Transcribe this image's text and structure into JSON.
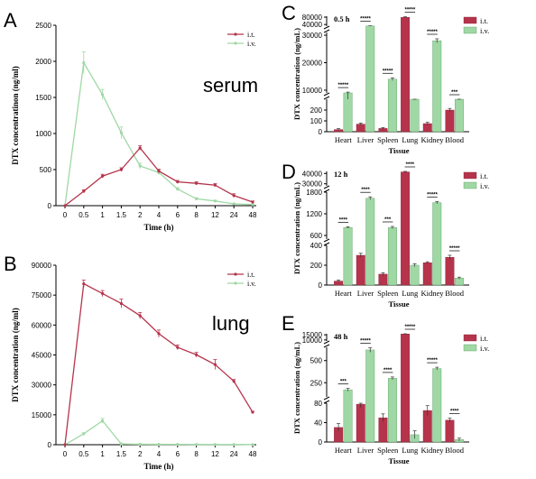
{
  "colors": {
    "it": "#b5344b",
    "iv": "#9fd8a4",
    "it_stroke": "#8a1f33",
    "iv_stroke": "#5a9b60",
    "axis": "#000000"
  },
  "chart_data": [
    {
      "panel": "A",
      "type": "line",
      "annotation": "serum",
      "xlabel": "Time (h)",
      "ylabel": "DTX concentratinon (ng/ml)",
      "categories": [
        "0",
        "0.5",
        "1",
        "1.5",
        "2",
        "4",
        "6",
        "8",
        "12",
        "24",
        "48"
      ],
      "yticks": [
        0,
        500,
        1000,
        1500,
        2000,
        2500
      ],
      "ylim": [
        0,
        2500
      ],
      "legend": "top-right",
      "series": [
        {
          "name": "i.t.",
          "values": [
            0,
            200,
            410,
            500,
            800,
            480,
            330,
            310,
            285,
            140,
            50
          ],
          "errors": [
            0,
            20,
            25,
            25,
            30,
            25,
            20,
            20,
            20,
            25,
            15
          ]
        },
        {
          "name": "i.v.",
          "values": [
            0,
            1980,
            1540,
            1010,
            550,
            460,
            230,
            95,
            65,
            25,
            15
          ],
          "errors": [
            0,
            150,
            70,
            80,
            40,
            30,
            20,
            15,
            10,
            8,
            5
          ]
        }
      ]
    },
    {
      "panel": "B",
      "type": "line",
      "annotation": "lung",
      "xlabel": "Time (h)",
      "ylabel": "DTX concentration (ng/ml)",
      "categories": [
        "0",
        "0.5",
        "1",
        "1.5",
        "2",
        "4",
        "6",
        "8",
        "12",
        "24",
        "48"
      ],
      "yticks": [
        0,
        15000,
        30000,
        45000,
        60000,
        75000,
        90000
      ],
      "ylim": [
        0,
        90000
      ],
      "legend": "top-right",
      "series": [
        {
          "name": "i.t.",
          "values": [
            0,
            80700,
            75800,
            70800,
            64700,
            55700,
            48800,
            45100,
            40200,
            31800,
            16300
          ],
          "errors": [
            0,
            1800,
            1500,
            2200,
            1600,
            1800,
            1200,
            1200,
            2500,
            900,
            500
          ]
        },
        {
          "name": "i.v.",
          "values": [
            0,
            5500,
            12000,
            400,
            250,
            200,
            180,
            150,
            120,
            100,
            80
          ],
          "errors": [
            0,
            500,
            1200,
            100,
            60,
            50,
            40,
            40,
            30,
            30,
            20
          ]
        }
      ]
    },
    {
      "panel": "C",
      "type": "bar",
      "time_label": "0.5 h",
      "xlabel": "Tissue",
      "ylabel": "DTX concentration (ng/mL)",
      "categories": [
        "Heart",
        "Liver",
        "Spleen",
        "Lung",
        "Kidney",
        "Blood"
      ],
      "legend": "top-right",
      "segments": [
        {
          "range": [
            0,
            300
          ],
          "ticks": [
            0,
            100,
            200
          ]
        },
        {
          "range": [
            9000,
            31000
          ],
          "ticks": [
            10000,
            20000,
            30000
          ]
        },
        {
          "range": [
            31000,
            85000
          ],
          "ticks": [
            40000,
            80000
          ]
        }
      ],
      "series": [
        {
          "name": "i.t.",
          "values": [
            20,
            70,
            30,
            79000,
            75,
            200
          ],
          "errors": [
            8,
            10,
            8,
            3000,
            12,
            15
          ]
        },
        {
          "name": "i.v.",
          "values": [
            9000,
            32000,
            14000,
            5000,
            28000,
            330
          ],
          "errors": [
            300,
            800,
            500,
            200,
            700,
            15
          ]
        }
      ],
      "significance": [
        "*****",
        "*****",
        "*****",
        "*****",
        "*****",
        "***"
      ]
    },
    {
      "panel": "D",
      "type": "bar",
      "time_label": "12 h",
      "xlabel": "Tissue",
      "ylabel": "DTX concentration (ng/mL)",
      "categories": [
        "Heart",
        "Liver",
        "Spleen",
        "Lung",
        "Kidney",
        "Blood"
      ],
      "legend": "top-right",
      "segments": [
        {
          "range": [
            0,
            400
          ],
          "ticks": [
            0,
            200,
            400
          ]
        },
        {
          "range": [
            500,
            1800
          ],
          "ticks": [
            600,
            1200,
            1800
          ]
        },
        {
          "range": [
            28000,
            42000
          ],
          "ticks": [
            30000,
            40000
          ]
        }
      ],
      "series": [
        {
          "name": "i.t.",
          "values": [
            40,
            300,
            110,
            41500,
            225,
            280
          ],
          "errors": [
            10,
            20,
            15,
            900,
            10,
            20
          ]
        },
        {
          "name": "i.v.",
          "values": [
            820,
            1630,
            820,
            200,
            1510,
            70
          ],
          "errors": [
            20,
            40,
            30,
            15,
            30,
            10
          ]
        }
      ],
      "significance": [
        "****",
        "****",
        "***",
        "****",
        "*****",
        "*****"
      ]
    },
    {
      "panel": "E",
      "type": "bar",
      "time_label": "48 h",
      "xlabel": "Tissue",
      "ylabel": "DTX concentration (ng/mL)",
      "categories": [
        "Heart",
        "Liver",
        "Spleen",
        "Lung",
        "Kidney",
        "Blood"
      ],
      "legend": "top-right",
      "segments": [
        {
          "range": [
            0,
            80
          ],
          "ticks": [
            0,
            40,
            80
          ]
        },
        {
          "range": [
            90,
            650
          ],
          "ticks": [
            250,
            500
          ]
        },
        {
          "range": [
            9000,
            16000
          ],
          "ticks": [
            10000,
            15000
          ]
        }
      ],
      "series": [
        {
          "name": "i.t.",
          "values": [
            30,
            78,
            50,
            15800,
            65,
            45
          ],
          "errors": [
            8,
            7,
            8,
            300,
            10,
            4
          ]
        },
        {
          "name": "i.v.",
          "values": [
            170,
            620,
            300,
            15,
            410,
            5
          ],
          "errors": [
            15,
            25,
            15,
            8,
            15,
            3
          ]
        }
      ],
      "significance": [
        "***",
        "*****",
        "****",
        "*****",
        "*****",
        "****"
      ]
    }
  ]
}
